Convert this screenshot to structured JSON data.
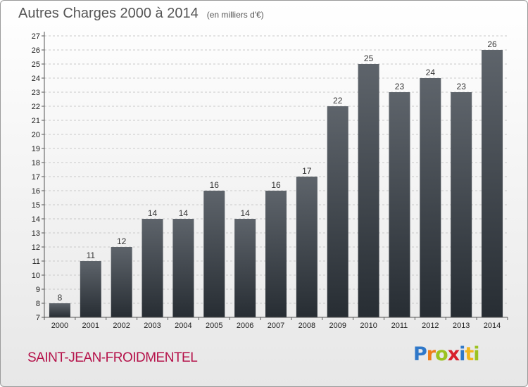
{
  "header": {
    "title": "Autres Charges 2000 à 2014",
    "subtitle": "(en milliers d'€)"
  },
  "footer": {
    "city": "SAINT-JEAN-FROIDMENTEL",
    "logo": {
      "letters": [
        "P",
        "r",
        "o",
        "x",
        "i",
        "t",
        "i"
      ],
      "colors": [
        "#2f78c9",
        "#ef7d1a",
        "#9cc21f",
        "#d8202c",
        "#2f78c9",
        "#f2b61b",
        "#9cc21f"
      ]
    }
  },
  "chart_data": {
    "type": "bar",
    "title": "Autres Charges 2000 à 2014",
    "subtitle": "(en milliers d'€)",
    "categories": [
      "2000",
      "2001",
      "2002",
      "2003",
      "2004",
      "2005",
      "2006",
      "2007",
      "2008",
      "2009",
      "2010",
      "2011",
      "2012",
      "2013",
      "2014"
    ],
    "values": [
      8,
      11,
      12,
      14,
      14,
      16,
      14,
      16,
      17,
      22,
      25,
      23,
      24,
      23,
      26
    ],
    "ylim": [
      7,
      27
    ],
    "yticks": [
      "7",
      "8",
      "9",
      "10",
      "11",
      "12",
      "13",
      "14",
      "15",
      "16",
      "17",
      "18",
      "19",
      "20",
      "21",
      "22",
      "23",
      "24",
      "25",
      "26",
      "27"
    ],
    "grid": "horizontal dashed",
    "bar_color_top": "#5e646b",
    "bar_color_bottom": "#272d33",
    "xlabel": "",
    "ylabel": ""
  }
}
